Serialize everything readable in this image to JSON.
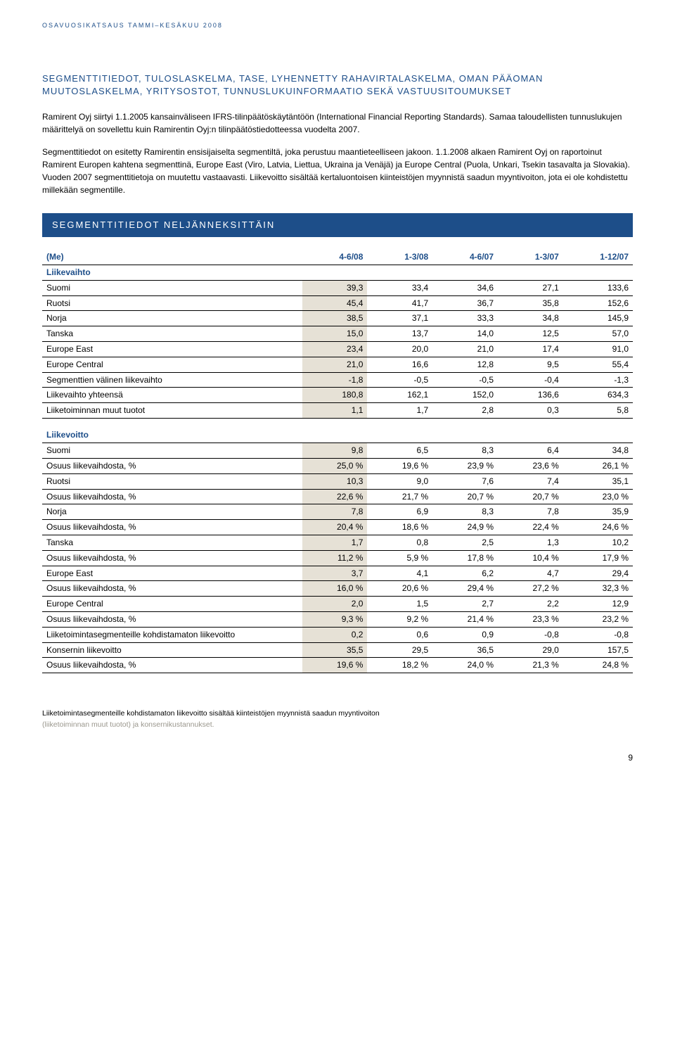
{
  "header": "OSAVUOSIKATSAUS TAMMI–KESÄKUU 2008",
  "title": "SEGMENTTITIEDOT, TULOSLASKELMA, TASE, LYHENNETTY RAHAVIRTALASKELMA, OMAN PÄÄOMAN MUUTOSLASKELMA, YRITYSOSTOT, TUNNUSLUKUINFORMAATIO SEKÄ VASTUUSITOUMUKSET",
  "para1": "Ramirent Oyj siirtyi 1.1.2005 kansainväliseen IFRS-tilinpäätöskäytäntöön (International Financial Reporting Standards). Samaa taloudellisten tunnuslukujen määrittelyä on sovellettu kuin Ramirentin Oyj:n tilinpäätöstiedotteessa vuodelta 2007.",
  "para2": "Segmenttitiedot on esitetty Ramirentin ensisijaiselta segmentiltä, joka perustuu maantieteelliseen jakoon. 1.1.2008 alkaen Ramirent Oyj on raportoinut Ramirent Europen kahtena segmenttinä, Europe East (Viro, Latvia, Liettua, Ukraina ja Venäjä) ja Europe Central (Puola, Unkari, Tsekin tasavalta ja Slovakia). Vuoden 2007 segmenttitietoja on muutettu vastaavasti. Liikevoitto sisältää kertaluontoisen kiinteistöjen myynnistä saadun myyntivoiton, jota ei ole kohdistettu millekään segmentille.",
  "banner": "SEGMENTTITIEDOT NELJÄNNEKSITTÄIN",
  "table": {
    "head": [
      "(Me)",
      "4-6/08",
      "1-3/08",
      "4-6/07",
      "1-3/07",
      "1-12/07"
    ],
    "sect1": "Liikevaihto",
    "rows1": [
      {
        "label": "Suomi",
        "c": [
          "39,3",
          "33,4",
          "34,6",
          "27,1",
          "133,6"
        ]
      },
      {
        "label": "Ruotsi",
        "c": [
          "45,4",
          "41,7",
          "36,7",
          "35,8",
          "152,6"
        ]
      },
      {
        "label": "Norja",
        "c": [
          "38,5",
          "37,1",
          "33,3",
          "34,8",
          "145,9"
        ]
      },
      {
        "label": "Tanska",
        "c": [
          "15,0",
          "13,7",
          "14,0",
          "12,5",
          "57,0"
        ]
      },
      {
        "label": "Europe East",
        "c": [
          "23,4",
          "20,0",
          "21,0",
          "17,4",
          "91,0"
        ]
      },
      {
        "label": "Europe Central",
        "c": [
          "21,0",
          "16,6",
          "12,8",
          "9,5",
          "55,4"
        ]
      },
      {
        "label": "Segmenttien välinen liikevaihto",
        "c": [
          "-1,8",
          "-0,5",
          "-0,5",
          "-0,4",
          "-1,3"
        ]
      },
      {
        "label": "Liikevaihto yhteensä",
        "c": [
          "180,8",
          "162,1",
          "152,0",
          "136,6",
          "634,3"
        ]
      },
      {
        "label": "Liiketoiminnan muut tuotot",
        "c": [
          "1,1",
          "1,7",
          "2,8",
          "0,3",
          "5,8"
        ]
      }
    ],
    "sect2": "Liikevoitto",
    "rows2": [
      {
        "label": "Suomi",
        "c": [
          "9,8",
          "6,5",
          "8,3",
          "6,4",
          "34,8"
        ]
      },
      {
        "label": "Osuus liikevaihdosta, %",
        "c": [
          "25,0 %",
          "19,6 %",
          "23,9 %",
          "23,6 %",
          "26,1 %"
        ]
      },
      {
        "label": "Ruotsi",
        "c": [
          "10,3",
          "9,0",
          "7,6",
          "7,4",
          "35,1"
        ]
      },
      {
        "label": "Osuus liikevaihdosta, %",
        "c": [
          "22,6 %",
          "21,7 %",
          "20,7 %",
          "20,7 %",
          "23,0 %"
        ]
      },
      {
        "label": "Norja",
        "c": [
          "7,8",
          "6,9",
          "8,3",
          "7,8",
          "35,9"
        ]
      },
      {
        "label": "Osuus liikevaihdosta, %",
        "c": [
          "20,4 %",
          "18,6 %",
          "24,9 %",
          "22,4 %",
          "24,6 %"
        ]
      },
      {
        "label": "Tanska",
        "c": [
          "1,7",
          "0,8",
          "2,5",
          "1,3",
          "10,2"
        ]
      },
      {
        "label": "Osuus liikevaihdosta, %",
        "c": [
          "11,2 %",
          "5,9 %",
          "17,8 %",
          "10,4 %",
          "17,9 %"
        ]
      },
      {
        "label": "Europe East",
        "c": [
          "3,7",
          "4,1",
          "6,2",
          "4,7",
          "29,4"
        ]
      },
      {
        "label": "Osuus liikevaihdosta, %",
        "c": [
          "16,0 %",
          "20,6 %",
          "29,4 %",
          "27,2 %",
          "32,3 %"
        ]
      },
      {
        "label": "Europe Central",
        "c": [
          "2,0",
          "1,5",
          "2,7",
          "2,2",
          "12,9"
        ]
      },
      {
        "label": "Osuus liikevaihdosta, %",
        "c": [
          "9,3 %",
          "9,2 %",
          "21,4 %",
          "23,3 %",
          "23,2 %"
        ]
      },
      {
        "label": "Liiketoimintasegmenteille kohdistamaton liikevoitto",
        "c": [
          "0,2",
          "0,6",
          "0,9",
          "-0,8",
          "-0,8"
        ]
      },
      {
        "label": "Konsernin liikevoitto",
        "c": [
          "35,5",
          "29,5",
          "36,5",
          "29,0",
          "157,5"
        ]
      },
      {
        "label": "Osuus liikevaihdosta, %",
        "c": [
          "19,6 %",
          "18,2 %",
          "24,0 %",
          "21,3 %",
          "24,8 %"
        ]
      }
    ]
  },
  "footnote_black": "Liiketoimintasegmenteille kohdistamaton liikevoitto sisältää kiinteistöjen myynnistä saadun myyntivoiton",
  "footnote_grey": "(liiketoiminnan muut tuotot) ja konsernikustannukset.",
  "page": "9",
  "style": {
    "accent": "#1d4e89",
    "shade": "#e6e1d6",
    "bg": "#ffffff"
  }
}
